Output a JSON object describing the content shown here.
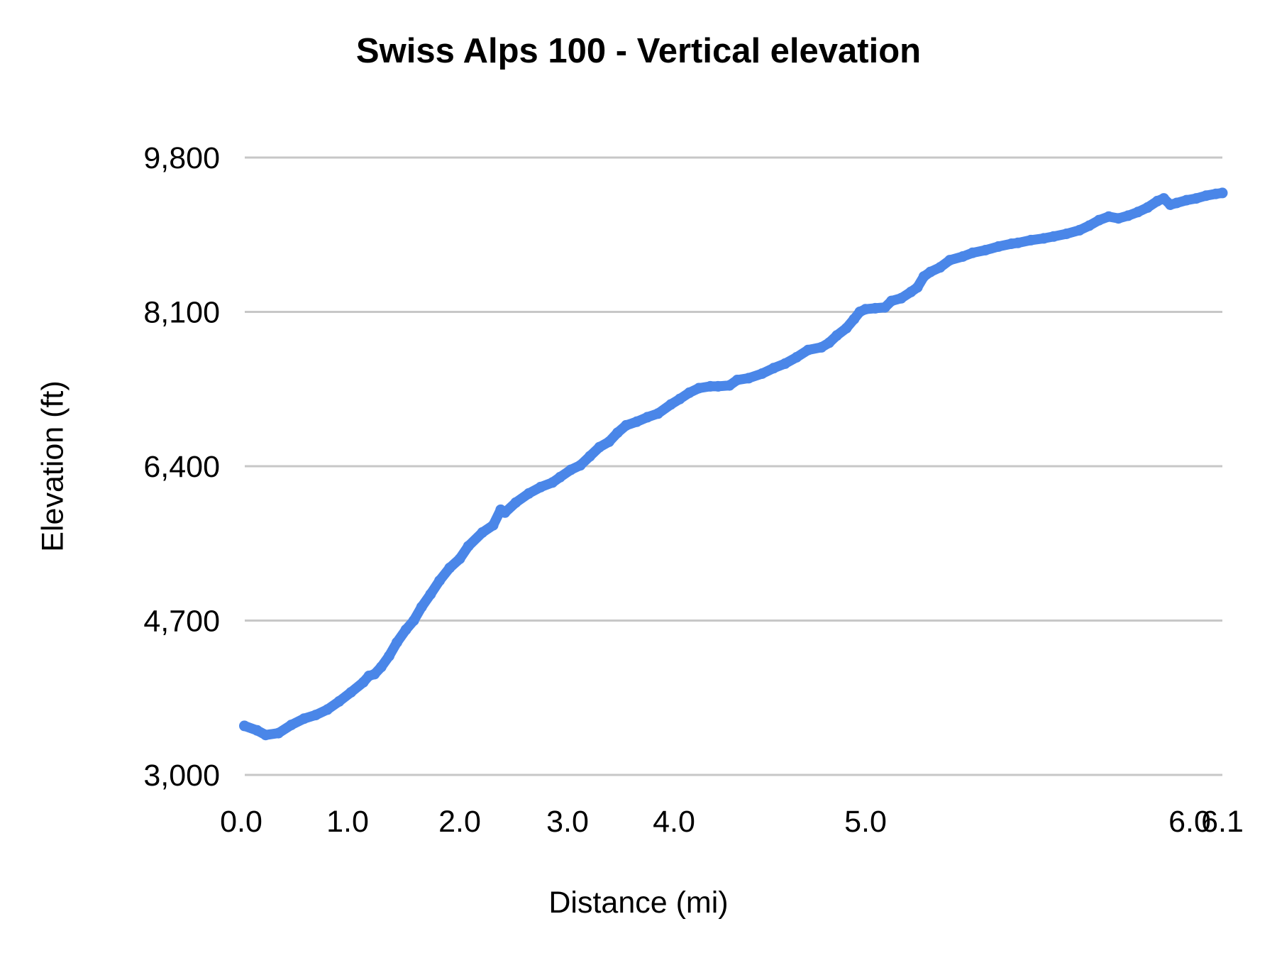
{
  "chart_data": {
    "type": "line",
    "title": "Swiss Alps 100 - Vertical elevation",
    "xlabel": "Distance (mi)",
    "ylabel": "Elevation (ft)",
    "legend": "none",
    "grid": "horizontal-only",
    "ylim": [
      3000,
      9800
    ],
    "xlim": [
      0,
      6.1
    ],
    "y_ticks": {
      "values": [
        3000,
        4700,
        6400,
        8100,
        9800
      ],
      "labels": [
        "3,000",
        "4,700",
        "6,400",
        "8,100",
        "9,800"
      ]
    },
    "x_ticks": {
      "values": [
        0,
        1,
        2,
        3,
        4,
        5,
        6,
        6.1
      ],
      "labels": [
        "0.0",
        "1.0",
        "2.0",
        "3.0",
        "4.0",
        "5.0",
        "6.0",
        "6.1"
      ]
    },
    "colors": {
      "line": "#4a86e8",
      "gridline": "#c7c7c7",
      "text": "#000000",
      "background": "#ffffff"
    },
    "series": [
      {
        "name": "Elevation",
        "points": [
          [
            0.03,
            3540
          ],
          [
            0.15,
            3490
          ],
          [
            0.23,
            3440
          ],
          [
            0.35,
            3460
          ],
          [
            0.47,
            3550
          ],
          [
            0.59,
            3620
          ],
          [
            0.7,
            3660
          ],
          [
            0.81,
            3720
          ],
          [
            0.92,
            3810
          ],
          [
            1.03,
            3910
          ],
          [
            1.14,
            4020
          ],
          [
            1.19,
            4090
          ],
          [
            1.24,
            4110
          ],
          [
            1.3,
            4190
          ],
          [
            1.37,
            4310
          ],
          [
            1.44,
            4460
          ],
          [
            1.52,
            4600
          ],
          [
            1.59,
            4700
          ],
          [
            1.66,
            4850
          ],
          [
            1.74,
            4990
          ],
          [
            1.82,
            5140
          ],
          [
            1.91,
            5280
          ],
          [
            2.0,
            5380
          ],
          [
            2.08,
            5520
          ],
          [
            2.21,
            5670
          ],
          [
            2.31,
            5750
          ],
          [
            2.38,
            5920
          ],
          [
            2.42,
            5890
          ],
          [
            2.52,
            6000
          ],
          [
            2.64,
            6100
          ],
          [
            2.75,
            6170
          ],
          [
            2.86,
            6220
          ],
          [
            2.93,
            6280
          ],
          [
            3.03,
            6360
          ],
          [
            3.12,
            6410
          ],
          [
            3.21,
            6510
          ],
          [
            3.3,
            6610
          ],
          [
            3.39,
            6670
          ],
          [
            3.47,
            6770
          ],
          [
            3.55,
            6850
          ],
          [
            3.65,
            6890
          ],
          [
            3.75,
            6940
          ],
          [
            3.85,
            6980
          ],
          [
            3.97,
            7080
          ],
          [
            4.03,
            7140
          ],
          [
            4.08,
            7210
          ],
          [
            4.13,
            7260
          ],
          [
            4.19,
            7280
          ],
          [
            4.23,
            7280
          ],
          [
            4.29,
            7290
          ],
          [
            4.33,
            7350
          ],
          [
            4.39,
            7370
          ],
          [
            4.46,
            7420
          ],
          [
            4.52,
            7480
          ],
          [
            4.58,
            7530
          ],
          [
            4.64,
            7600
          ],
          [
            4.7,
            7680
          ],
          [
            4.77,
            7710
          ],
          [
            4.81,
            7760
          ],
          [
            4.85,
            7840
          ],
          [
            4.9,
            7920
          ],
          [
            4.94,
            8020
          ],
          [
            4.97,
            8100
          ],
          [
            5.0,
            8130
          ],
          [
            5.03,
            8140
          ],
          [
            5.06,
            8150
          ],
          [
            5.08,
            8220
          ],
          [
            5.11,
            8250
          ],
          [
            5.14,
            8320
          ],
          [
            5.16,
            8370
          ],
          [
            5.18,
            8490
          ],
          [
            5.2,
            8540
          ],
          [
            5.23,
            8590
          ],
          [
            5.26,
            8670
          ],
          [
            5.3,
            8710
          ],
          [
            5.33,
            8750
          ],
          [
            5.37,
            8780
          ],
          [
            5.41,
            8820
          ],
          [
            5.45,
            8850
          ],
          [
            5.47,
            8860
          ],
          [
            5.51,
            8890
          ],
          [
            5.55,
            8910
          ],
          [
            5.58,
            8930
          ],
          [
            5.62,
            8960
          ],
          [
            5.66,
            9000
          ],
          [
            5.69,
            9050
          ],
          [
            5.72,
            9110
          ],
          [
            5.75,
            9150
          ],
          [
            5.78,
            9130
          ],
          [
            5.81,
            9160
          ],
          [
            5.84,
            9200
          ],
          [
            5.87,
            9250
          ],
          [
            5.9,
            9320
          ],
          [
            5.92,
            9350
          ],
          [
            5.94,
            9280
          ],
          [
            5.96,
            9300
          ],
          [
            5.99,
            9330
          ],
          [
            6.02,
            9350
          ],
          [
            6.05,
            9380
          ],
          [
            6.08,
            9400
          ],
          [
            6.1,
            9410
          ]
        ]
      }
    ]
  }
}
